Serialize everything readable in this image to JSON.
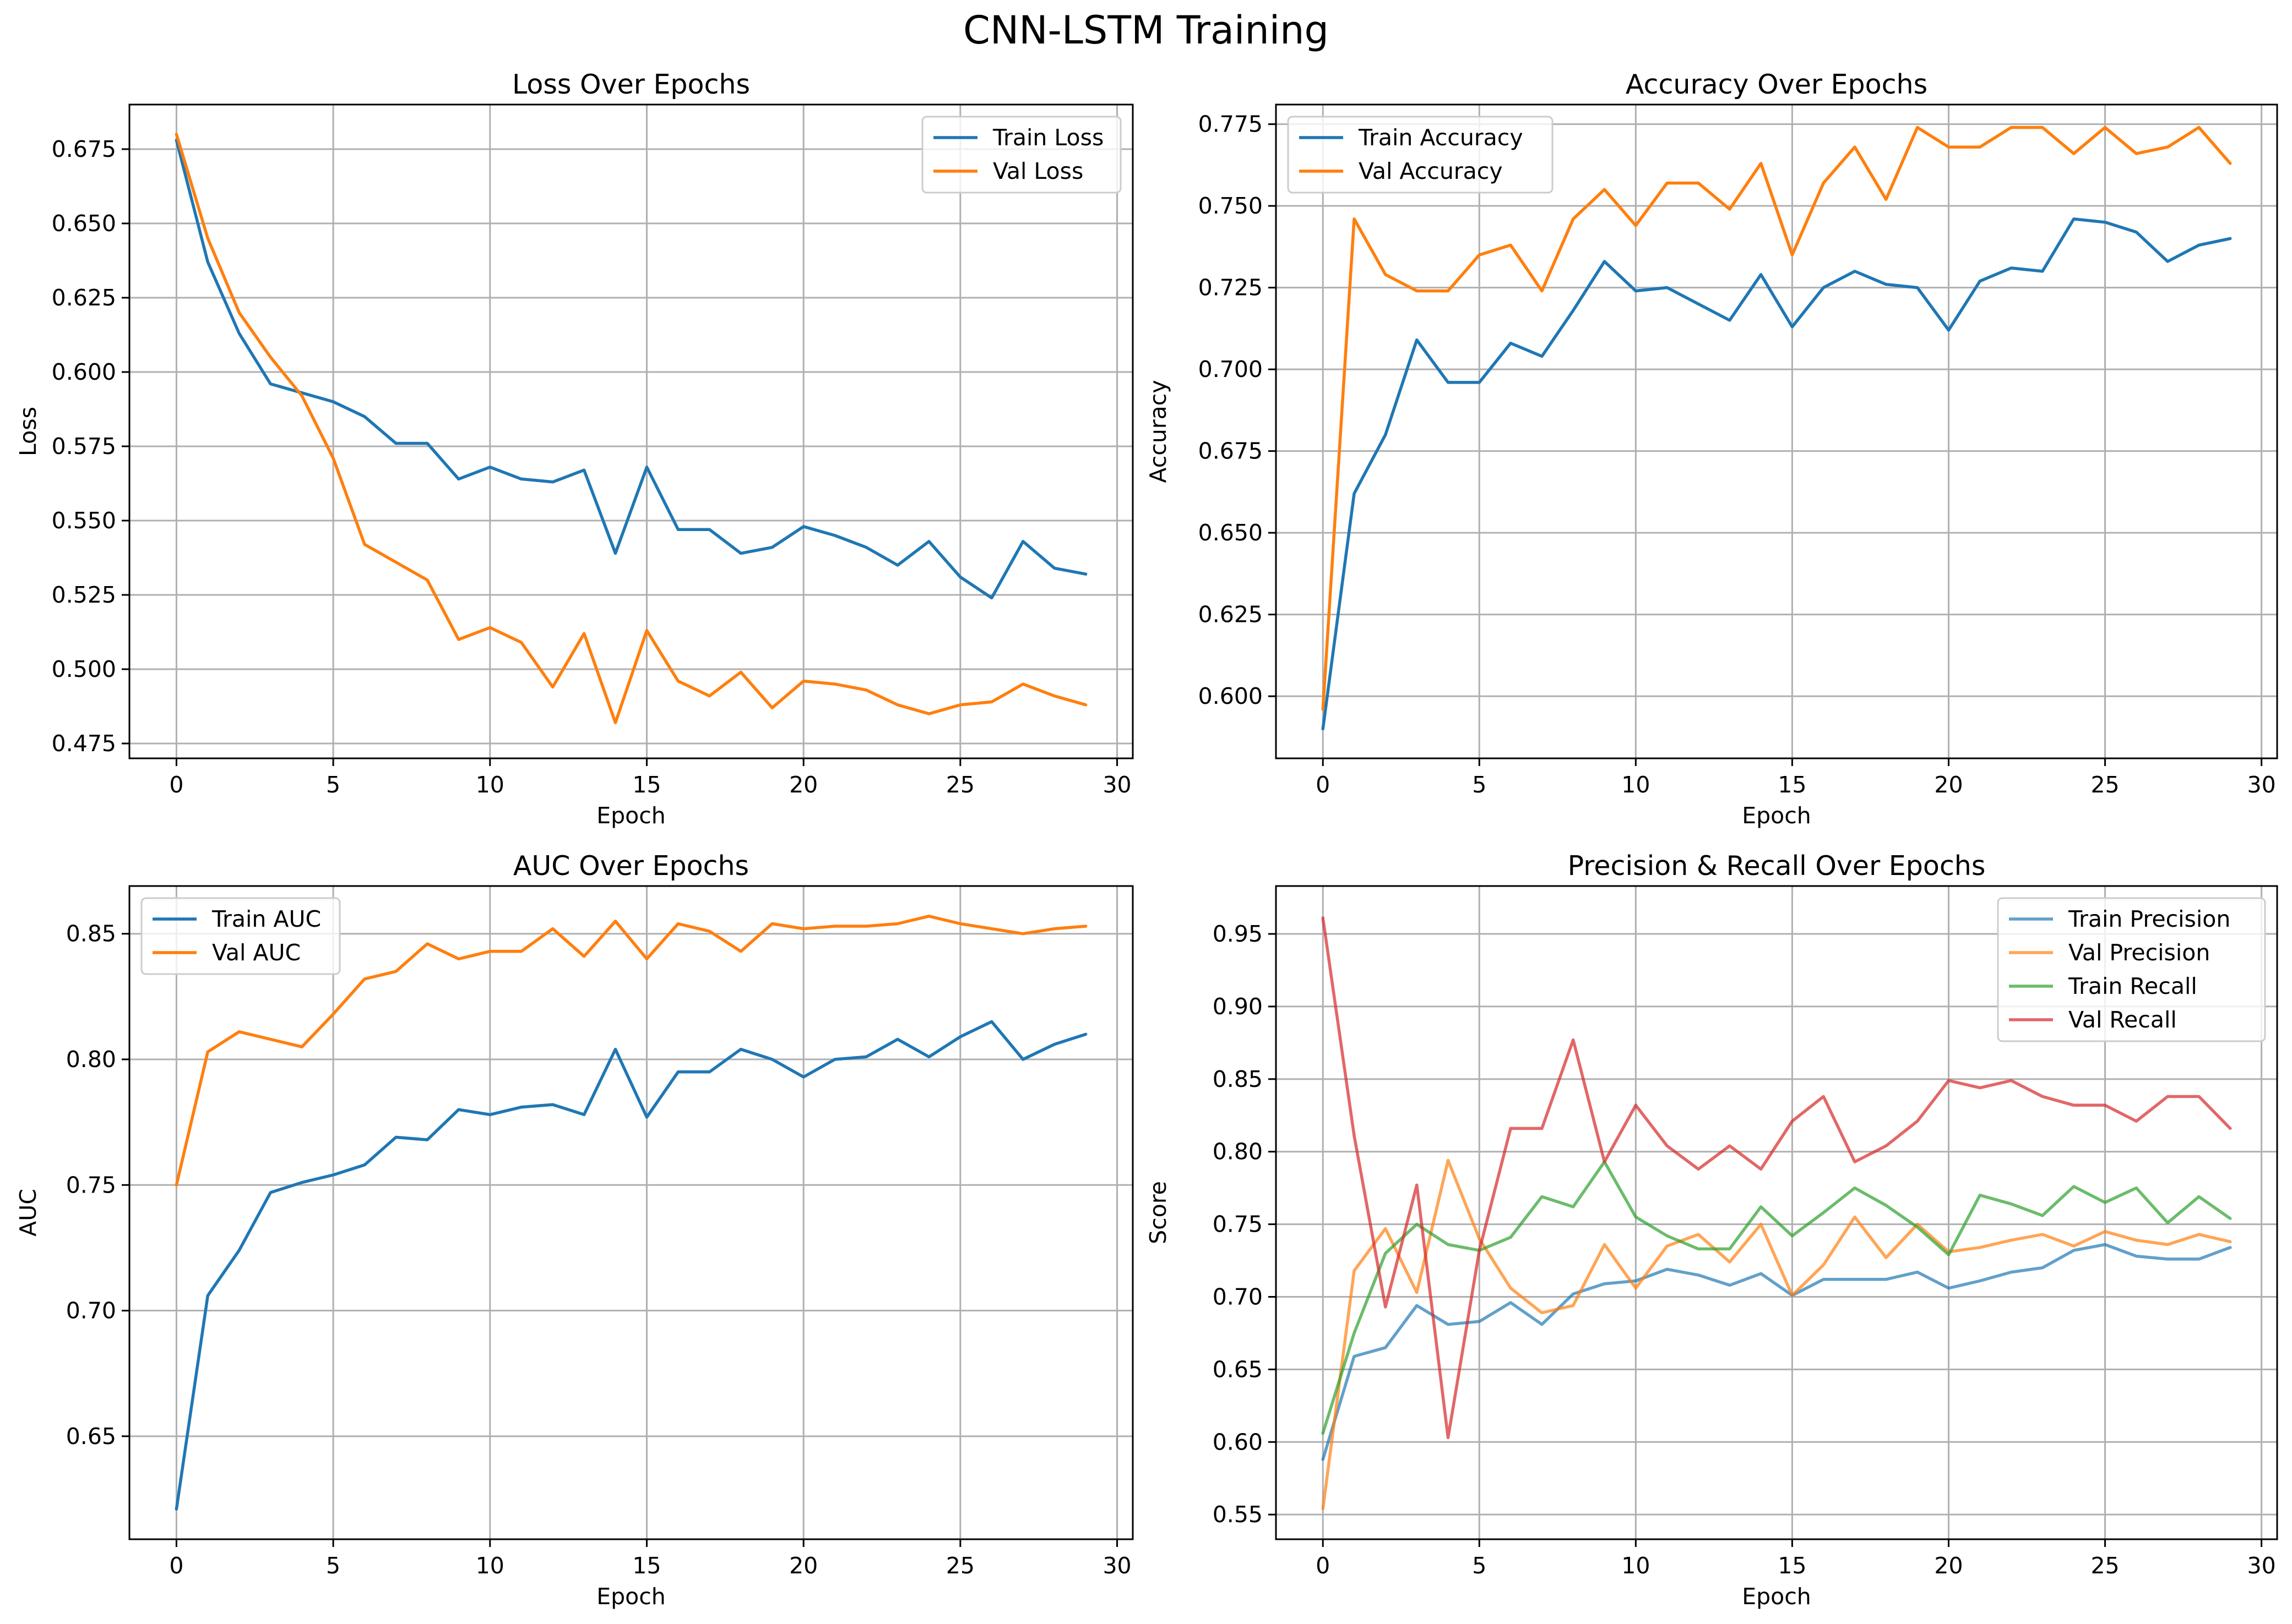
{
  "figure": {
    "title": "CNN-LSTM Training",
    "colors": {
      "train": "#1f77b4",
      "val": "#ff7f0e",
      "train_recall": "#2ca02c",
      "val_recall": "#d62728",
      "grid": "#b0b0b0"
    }
  },
  "chart_data": [
    {
      "type": "line",
      "title": "Loss Over Epochs",
      "xlabel": "Epoch",
      "ylabel": "Loss",
      "xlim": [
        -1.5,
        30.5
      ],
      "ylim": [
        0.47,
        0.69
      ],
      "xticks": [
        0,
        5,
        10,
        15,
        20,
        25,
        30
      ],
      "yticks": [
        0.475,
        0.5,
        0.525,
        0.55,
        0.575,
        0.6,
        0.625,
        0.65,
        0.675
      ],
      "ytick_labels": [
        "0.475",
        "0.500",
        "0.525",
        "0.550",
        "0.575",
        "0.600",
        "0.625",
        "0.650",
        "0.675"
      ],
      "grid": true,
      "legend": "upper-right",
      "x": [
        0,
        1,
        2,
        3,
        4,
        5,
        6,
        7,
        8,
        9,
        10,
        11,
        12,
        13,
        14,
        15,
        16,
        17,
        18,
        19,
        20,
        21,
        22,
        23,
        24,
        25,
        26,
        27,
        28,
        29
      ],
      "series": [
        {
          "name": "Train Loss",
          "color": "#1f77b4",
          "alpha": 1,
          "values": [
            0.678,
            0.637,
            0.613,
            0.596,
            0.593,
            0.59,
            0.585,
            0.576,
            0.576,
            0.564,
            0.568,
            0.564,
            0.563,
            0.567,
            0.539,
            0.568,
            0.547,
            0.547,
            0.539,
            0.541,
            0.548,
            0.545,
            0.541,
            0.535,
            0.543,
            0.531,
            0.524,
            0.543,
            0.534,
            0.532
          ]
        },
        {
          "name": "Val Loss",
          "color": "#ff7f0e",
          "alpha": 1,
          "values": [
            0.68,
            0.645,
            0.62,
            0.605,
            0.592,
            0.571,
            0.542,
            0.536,
            0.53,
            0.51,
            0.514,
            0.509,
            0.494,
            0.512,
            0.482,
            0.513,
            0.496,
            0.491,
            0.499,
            0.487,
            0.496,
            0.495,
            0.493,
            0.488,
            0.485,
            0.488,
            0.489,
            0.495,
            0.491,
            0.488
          ]
        }
      ]
    },
    {
      "type": "line",
      "title": "Accuracy Over Epochs",
      "xlabel": "Epoch",
      "ylabel": "Accuracy",
      "xlim": [
        -1.5,
        30.5
      ],
      "ylim": [
        0.581,
        0.781
      ],
      "xticks": [
        0,
        5,
        10,
        15,
        20,
        25,
        30
      ],
      "yticks": [
        0.6,
        0.625,
        0.65,
        0.675,
        0.7,
        0.725,
        0.75,
        0.775
      ],
      "ytick_labels": [
        "0.600",
        "0.625",
        "0.650",
        "0.675",
        "0.700",
        "0.725",
        "0.750",
        "0.775"
      ],
      "grid": true,
      "legend": "upper-left",
      "x": [
        0,
        1,
        2,
        3,
        4,
        5,
        6,
        7,
        8,
        9,
        10,
        11,
        12,
        13,
        14,
        15,
        16,
        17,
        18,
        19,
        20,
        21,
        22,
        23,
        24,
        25,
        26,
        27,
        28,
        29
      ],
      "series": [
        {
          "name": "Train Accuracy",
          "color": "#1f77b4",
          "alpha": 1,
          "values": [
            0.59,
            0.662,
            0.68,
            0.709,
            0.696,
            0.696,
            0.708,
            0.704,
            0.718,
            0.733,
            0.724,
            0.725,
            0.72,
            0.715,
            0.729,
            0.713,
            0.725,
            0.73,
            0.726,
            0.725,
            0.712,
            0.727,
            0.731,
            0.73,
            0.746,
            0.745,
            0.742,
            0.733,
            0.738,
            0.74
          ]
        },
        {
          "name": "Val Accuracy",
          "color": "#ff7f0e",
          "alpha": 1,
          "values": [
            0.596,
            0.746,
            0.729,
            0.724,
            0.724,
            0.735,
            0.738,
            0.724,
            0.746,
            0.755,
            0.744,
            0.757,
            0.757,
            0.749,
            0.763,
            0.735,
            0.757,
            0.768,
            0.752,
            0.774,
            0.768,
            0.768,
            0.774,
            0.774,
            0.766,
            0.774,
            0.766,
            0.768,
            0.774,
            0.763
          ]
        }
      ]
    },
    {
      "type": "line",
      "title": "AUC Over Epochs",
      "xlabel": "Epoch",
      "ylabel": "AUC",
      "xlim": [
        -1.5,
        30.5
      ],
      "ylim": [
        0.609,
        0.869
      ],
      "xticks": [
        0,
        5,
        10,
        15,
        20,
        25,
        30
      ],
      "yticks": [
        0.65,
        0.7,
        0.75,
        0.8,
        0.85
      ],
      "ytick_labels": [
        "0.65",
        "0.70",
        "0.75",
        "0.80",
        "0.85"
      ],
      "grid": true,
      "legend": "upper-left",
      "x": [
        0,
        1,
        2,
        3,
        4,
        5,
        6,
        7,
        8,
        9,
        10,
        11,
        12,
        13,
        14,
        15,
        16,
        17,
        18,
        19,
        20,
        21,
        22,
        23,
        24,
        25,
        26,
        27,
        28,
        29
      ],
      "series": [
        {
          "name": "Train AUC",
          "color": "#1f77b4",
          "alpha": 1,
          "values": [
            0.621,
            0.706,
            0.724,
            0.747,
            0.751,
            0.754,
            0.758,
            0.769,
            0.768,
            0.78,
            0.778,
            0.781,
            0.782,
            0.778,
            0.804,
            0.777,
            0.795,
            0.795,
            0.804,
            0.8,
            0.793,
            0.8,
            0.801,
            0.808,
            0.801,
            0.809,
            0.815,
            0.8,
            0.806,
            0.81
          ]
        },
        {
          "name": "Val AUC",
          "color": "#ff7f0e",
          "alpha": 1,
          "values": [
            0.75,
            0.803,
            0.811,
            0.808,
            0.805,
            0.818,
            0.832,
            0.835,
            0.846,
            0.84,
            0.843,
            0.843,
            0.852,
            0.841,
            0.855,
            0.84,
            0.854,
            0.851,
            0.843,
            0.854,
            0.852,
            0.853,
            0.853,
            0.854,
            0.857,
            0.854,
            0.852,
            0.85,
            0.852,
            0.853
          ]
        }
      ]
    },
    {
      "type": "line",
      "title": "Precision & Recall Over Epochs",
      "xlabel": "Epoch",
      "ylabel": "Score",
      "xlim": [
        -1.5,
        30.5
      ],
      "ylim": [
        0.533,
        0.983
      ],
      "xticks": [
        0,
        5,
        10,
        15,
        20,
        25,
        30
      ],
      "yticks": [
        0.55,
        0.6,
        0.65,
        0.7,
        0.75,
        0.8,
        0.85,
        0.9,
        0.95
      ],
      "ytick_labels": [
        "0.55",
        "0.60",
        "0.65",
        "0.70",
        "0.75",
        "0.80",
        "0.85",
        "0.90",
        "0.95"
      ],
      "grid": true,
      "legend": "upper-right",
      "x": [
        0,
        1,
        2,
        3,
        4,
        5,
        6,
        7,
        8,
        9,
        10,
        11,
        12,
        13,
        14,
        15,
        16,
        17,
        18,
        19,
        20,
        21,
        22,
        23,
        24,
        25,
        26,
        27,
        28,
        29
      ],
      "series": [
        {
          "name": "Train Precision",
          "color": "#1f77b4",
          "alpha": 0.7,
          "values": [
            0.588,
            0.659,
            0.665,
            0.694,
            0.681,
            0.683,
            0.696,
            0.681,
            0.702,
            0.709,
            0.711,
            0.719,
            0.715,
            0.708,
            0.716,
            0.701,
            0.712,
            0.712,
            0.712,
            0.717,
            0.706,
            0.711,
            0.717,
            0.72,
            0.732,
            0.736,
            0.728,
            0.726,
            0.726,
            0.734
          ]
        },
        {
          "name": "Val Precision",
          "color": "#ff7f0e",
          "alpha": 0.7,
          "values": [
            0.554,
            0.718,
            0.747,
            0.703,
            0.794,
            0.74,
            0.706,
            0.689,
            0.694,
            0.736,
            0.706,
            0.735,
            0.743,
            0.724,
            0.75,
            0.701,
            0.722,
            0.755,
            0.727,
            0.75,
            0.731,
            0.734,
            0.739,
            0.743,
            0.735,
            0.745,
            0.739,
            0.736,
            0.743,
            0.738
          ]
        },
        {
          "name": "Train Recall",
          "color": "#2ca02c",
          "alpha": 0.7,
          "values": [
            0.606,
            0.675,
            0.73,
            0.75,
            0.736,
            0.732,
            0.741,
            0.769,
            0.762,
            0.793,
            0.755,
            0.742,
            0.733,
            0.733,
            0.762,
            0.742,
            0.758,
            0.775,
            0.763,
            0.748,
            0.729,
            0.77,
            0.764,
            0.756,
            0.776,
            0.765,
            0.775,
            0.751,
            0.769,
            0.754
          ]
        },
        {
          "name": "Val Recall",
          "color": "#d62728",
          "alpha": 0.7,
          "values": [
            0.961,
            0.811,
            0.693,
            0.777,
            0.603,
            0.732,
            0.816,
            0.816,
            0.877,
            0.793,
            0.832,
            0.804,
            0.788,
            0.804,
            0.788,
            0.821,
            0.838,
            0.793,
            0.804,
            0.821,
            0.849,
            0.844,
            0.849,
            0.838,
            0.832,
            0.832,
            0.821,
            0.838,
            0.838,
            0.816
          ]
        }
      ]
    }
  ]
}
